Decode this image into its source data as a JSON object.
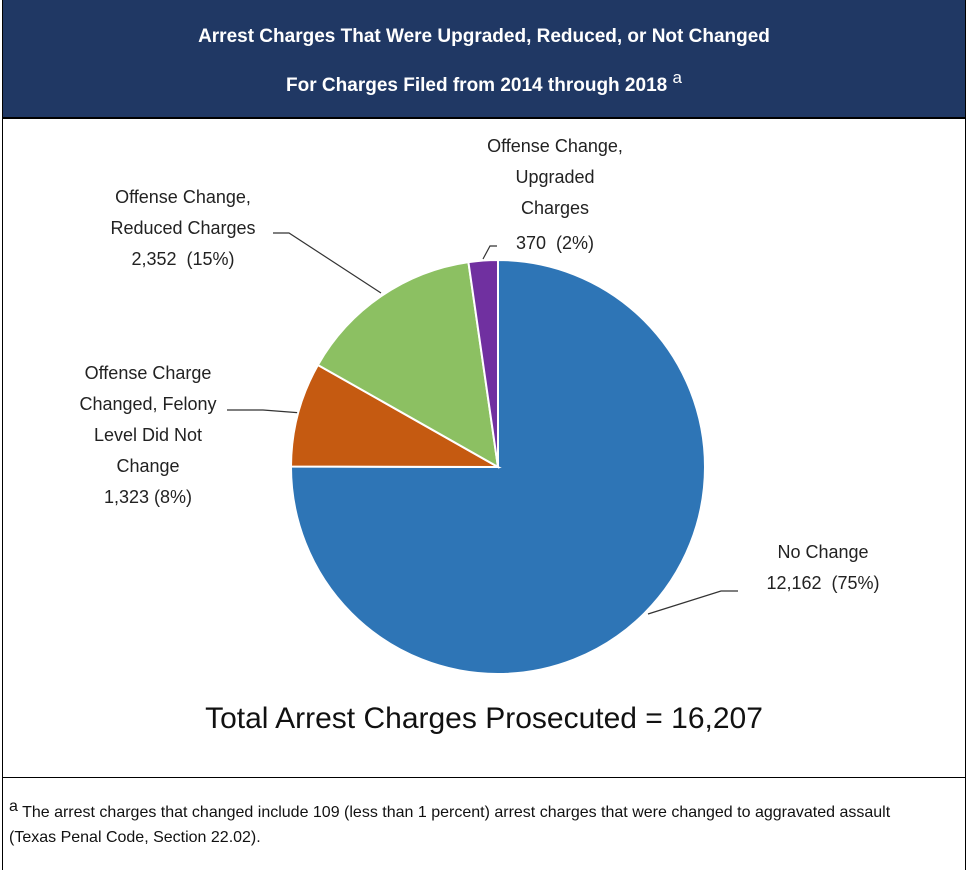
{
  "header": {
    "title": "Arrest Charges That Were Upgraded, Reduced, or Not Changed",
    "subtitle": "For Charges Filed from 2014 through 2018",
    "note_marker": "a"
  },
  "chart_data": {
    "type": "pie",
    "categories": [
      "No Change",
      "Offense Charge Changed, Felony Level Did Not Change",
      "Offense Change, Reduced Charges",
      "Offense Change, Upgraded Charges"
    ],
    "values": [
      12162,
      1323,
      2352,
      370
    ],
    "value_labels": [
      "12,162  (75%)",
      "1,323 (8%)",
      "2,352  (15%)",
      "370  (2%)"
    ],
    "colors": [
      "#2e75b6",
      "#c55a11",
      "#8cc062",
      "#7030a0"
    ],
    "annotation": "Total Arrest Charges Prosecuted = 16,207"
  },
  "footnote": {
    "marker": "a",
    "text": "The arrest charges that changed include 109 (less than 1 percent) arrest charges that were changed to aggravated assault (Texas Penal Code, Section 22.02)."
  }
}
